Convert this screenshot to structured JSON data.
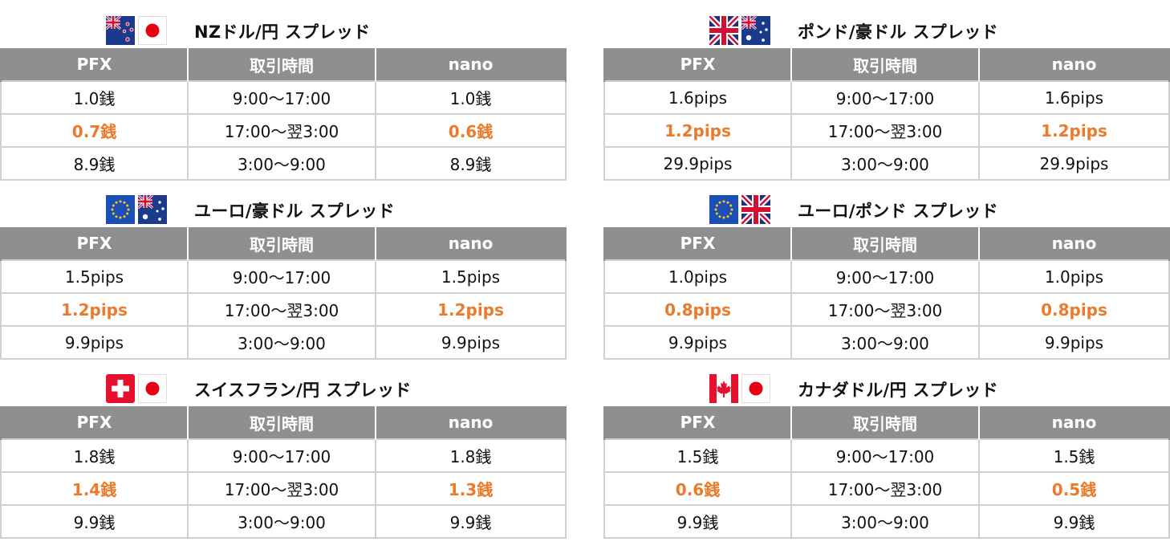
{
  "headers": {
    "pfx": "PFX",
    "time": "取引時間",
    "nano": "nano"
  },
  "colors": {
    "header_bg": "#8f8f8f",
    "highlight": "#ec7a2b",
    "border": "#cfcfcf"
  },
  "panels": [
    {
      "title": "NZドル/円 スプレッド",
      "flags": [
        "new-zealand-flag-icon",
        "japan-flag-icon"
      ],
      "rows": [
        {
          "pfx": "1.0銭",
          "time": "9:00～17:00",
          "nano": "1.0銭"
        },
        {
          "pfx": "0.7銭",
          "time": "17:00～翌3:00",
          "nano": "0.6銭"
        },
        {
          "pfx": "8.9銭",
          "time": "3:00～9:00",
          "nano": "8.9銭"
        }
      ]
    },
    {
      "title": "ポンド/豪ドル スプレッド",
      "flags": [
        "uk-flag-icon",
        "australia-flag-icon"
      ],
      "rows": [
        {
          "pfx": "1.6pips",
          "time": "9:00～17:00",
          "nano": "1.6pips"
        },
        {
          "pfx": "1.2pips",
          "time": "17:00～翌3:00",
          "nano": "1.2pips"
        },
        {
          "pfx": "29.9pips",
          "time": "3:00～9:00",
          "nano": "29.9pips"
        }
      ]
    },
    {
      "title": "ユーロ/豪ドル スプレッド",
      "flags": [
        "eu-flag-icon",
        "australia-flag-icon"
      ],
      "rows": [
        {
          "pfx": "1.5pips",
          "time": "9:00～17:00",
          "nano": "1.5pips"
        },
        {
          "pfx": "1.2pips",
          "time": "17:00～翌3:00",
          "nano": "1.2pips"
        },
        {
          "pfx": "9.9pips",
          "time": "3:00～9:00",
          "nano": "9.9pips"
        }
      ]
    },
    {
      "title": "ユーロ/ポンド スプレッド",
      "flags": [
        "eu-flag-icon",
        "uk-flag-icon"
      ],
      "rows": [
        {
          "pfx": "1.0pips",
          "time": "9:00～17:00",
          "nano": "1.0pips"
        },
        {
          "pfx": "0.8pips",
          "time": "17:00～翌3:00",
          "nano": "0.8pips"
        },
        {
          "pfx": "9.9pips",
          "time": "3:00～9:00",
          "nano": "9.9pips"
        }
      ]
    },
    {
      "title": "スイスフラン/円 スプレッド",
      "flags": [
        "switzerland-flag-icon",
        "japan-flag-icon"
      ],
      "rows": [
        {
          "pfx": "1.8銭",
          "time": "9:00～17:00",
          "nano": "1.8銭"
        },
        {
          "pfx": "1.4銭",
          "time": "17:00～翌3:00",
          "nano": "1.3銭"
        },
        {
          "pfx": "9.9銭",
          "time": "3:00～9:00",
          "nano": "9.9銭"
        }
      ]
    },
    {
      "title": "カナダドル/円 スプレッド",
      "flags": [
        "canada-flag-icon",
        "japan-flag-icon"
      ],
      "rows": [
        {
          "pfx": "1.5銭",
          "time": "9:00～17:00",
          "nano": "1.5銭"
        },
        {
          "pfx": "0.6銭",
          "time": "17:00～翌3:00",
          "nano": "0.5銭"
        },
        {
          "pfx": "9.9銭",
          "time": "3:00～9:00",
          "nano": "9.9銭"
        }
      ]
    }
  ]
}
